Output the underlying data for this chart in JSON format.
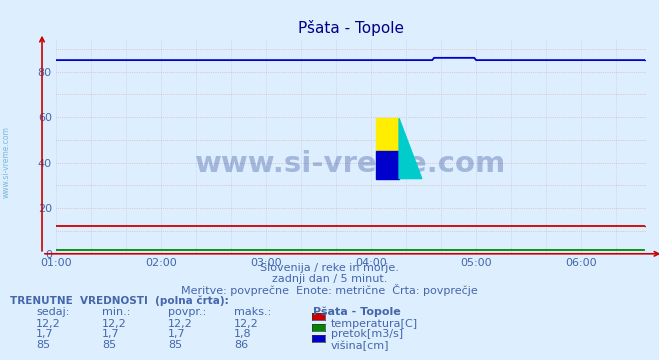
{
  "title": "Pšata - Topole",
  "bg_color": "#ddeeff",
  "plot_bg_color": "#ddeeff",
  "xmin": 0,
  "xmax": 337,
  "ymin": 0,
  "ymax": 94,
  "yticks": [
    0,
    20,
    40,
    60,
    80
  ],
  "xtick_positions": [
    0,
    60,
    120,
    180,
    240,
    300
  ],
  "xtick_labels": [
    "01:00",
    "02:00",
    "03:00",
    "04:00",
    "05:00",
    "06:00"
  ],
  "temp_value": 12.2,
  "pretok_value": 1.7,
  "visina_value": 85,
  "visina_step_start": 216,
  "visina_step_end": 240,
  "visina_step_value": 86,
  "temp_color": "#cc0000",
  "pretok_color": "#008800",
  "visina_color": "#0000cc",
  "tick_color": "#4466aa",
  "text_color": "#4466aa",
  "subtitle1": "Slovenija / reke in morje.",
  "subtitle2": "zadnji dan / 5 minut.",
  "subtitle3": "Meritve: povprečne  Enote: metrične  Črta: povprečje",
  "legend_title": "Pšata - Topole",
  "legend_items": [
    "temperatura[C]",
    "pretok[m3/s]",
    "višina[cm]"
  ],
  "legend_colors": [
    "#cc0000",
    "#008800",
    "#0000cc"
  ],
  "table_header_label": "TRENUTNE  VREDNOSTI  (polna črta):",
  "table_headers": [
    "sedaj:",
    "min.:",
    "povpr.:",
    "maks.:"
  ],
  "table_data": [
    [
      "12,2",
      "12,2",
      "12,2",
      "12,2"
    ],
    [
      "1,7",
      "1,7",
      "1,7",
      "1,8"
    ],
    [
      "85",
      "85",
      "85",
      "86"
    ]
  ],
  "watermark": "www.si-vreme.com",
  "watermark_color": "#1a3a8a",
  "watermark_alpha": 0.3,
  "side_text": "www.si-vreme.com",
  "side_text_color": "#66aacc",
  "icon_yellow": "#ffee00",
  "icon_cyan": "#00cccc",
  "icon_blue": "#0000cc"
}
